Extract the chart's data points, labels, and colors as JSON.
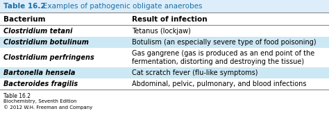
{
  "title_bold": "Table 16.2",
  "title_normal": "Examples of pathogenic obligate anaerobes",
  "col1_header": "Bacterium",
  "col2_header": "Result of infection",
  "rows": [
    {
      "bacterium": "Clostridium tetani",
      "result": "Tetanus (lockjaw)",
      "highlight": false
    },
    {
      "bacterium": "Clostridium botulinum",
      "result": "Botulism (an especially severe type of food poisoning)",
      "highlight": true
    },
    {
      "bacterium": "Clostridium perfringens",
      "result": "Gas gangrene (gas is produced as an end point of the\n     fermentation, distorting and destroying the tissue)",
      "highlight": false
    },
    {
      "bacterium": "Bartonella hensela",
      "result": "Cat scratch fever (flu-like symptoms)",
      "highlight": true
    },
    {
      "bacterium": "Bacteroides fragilis",
      "result": "Abdominal, pelvic, pulmonary, and blood infections",
      "highlight": false
    }
  ],
  "footer_lines": [
    "Table 16.2",
    "Biochemistry, Seventh Edition",
    "© 2012 W.H. Freeman and Company"
  ],
  "highlight_color": "#cce8f4",
  "bg_color": "#ffffff",
  "title_color": "#1a6fa8",
  "header_text_color": "#000000"
}
